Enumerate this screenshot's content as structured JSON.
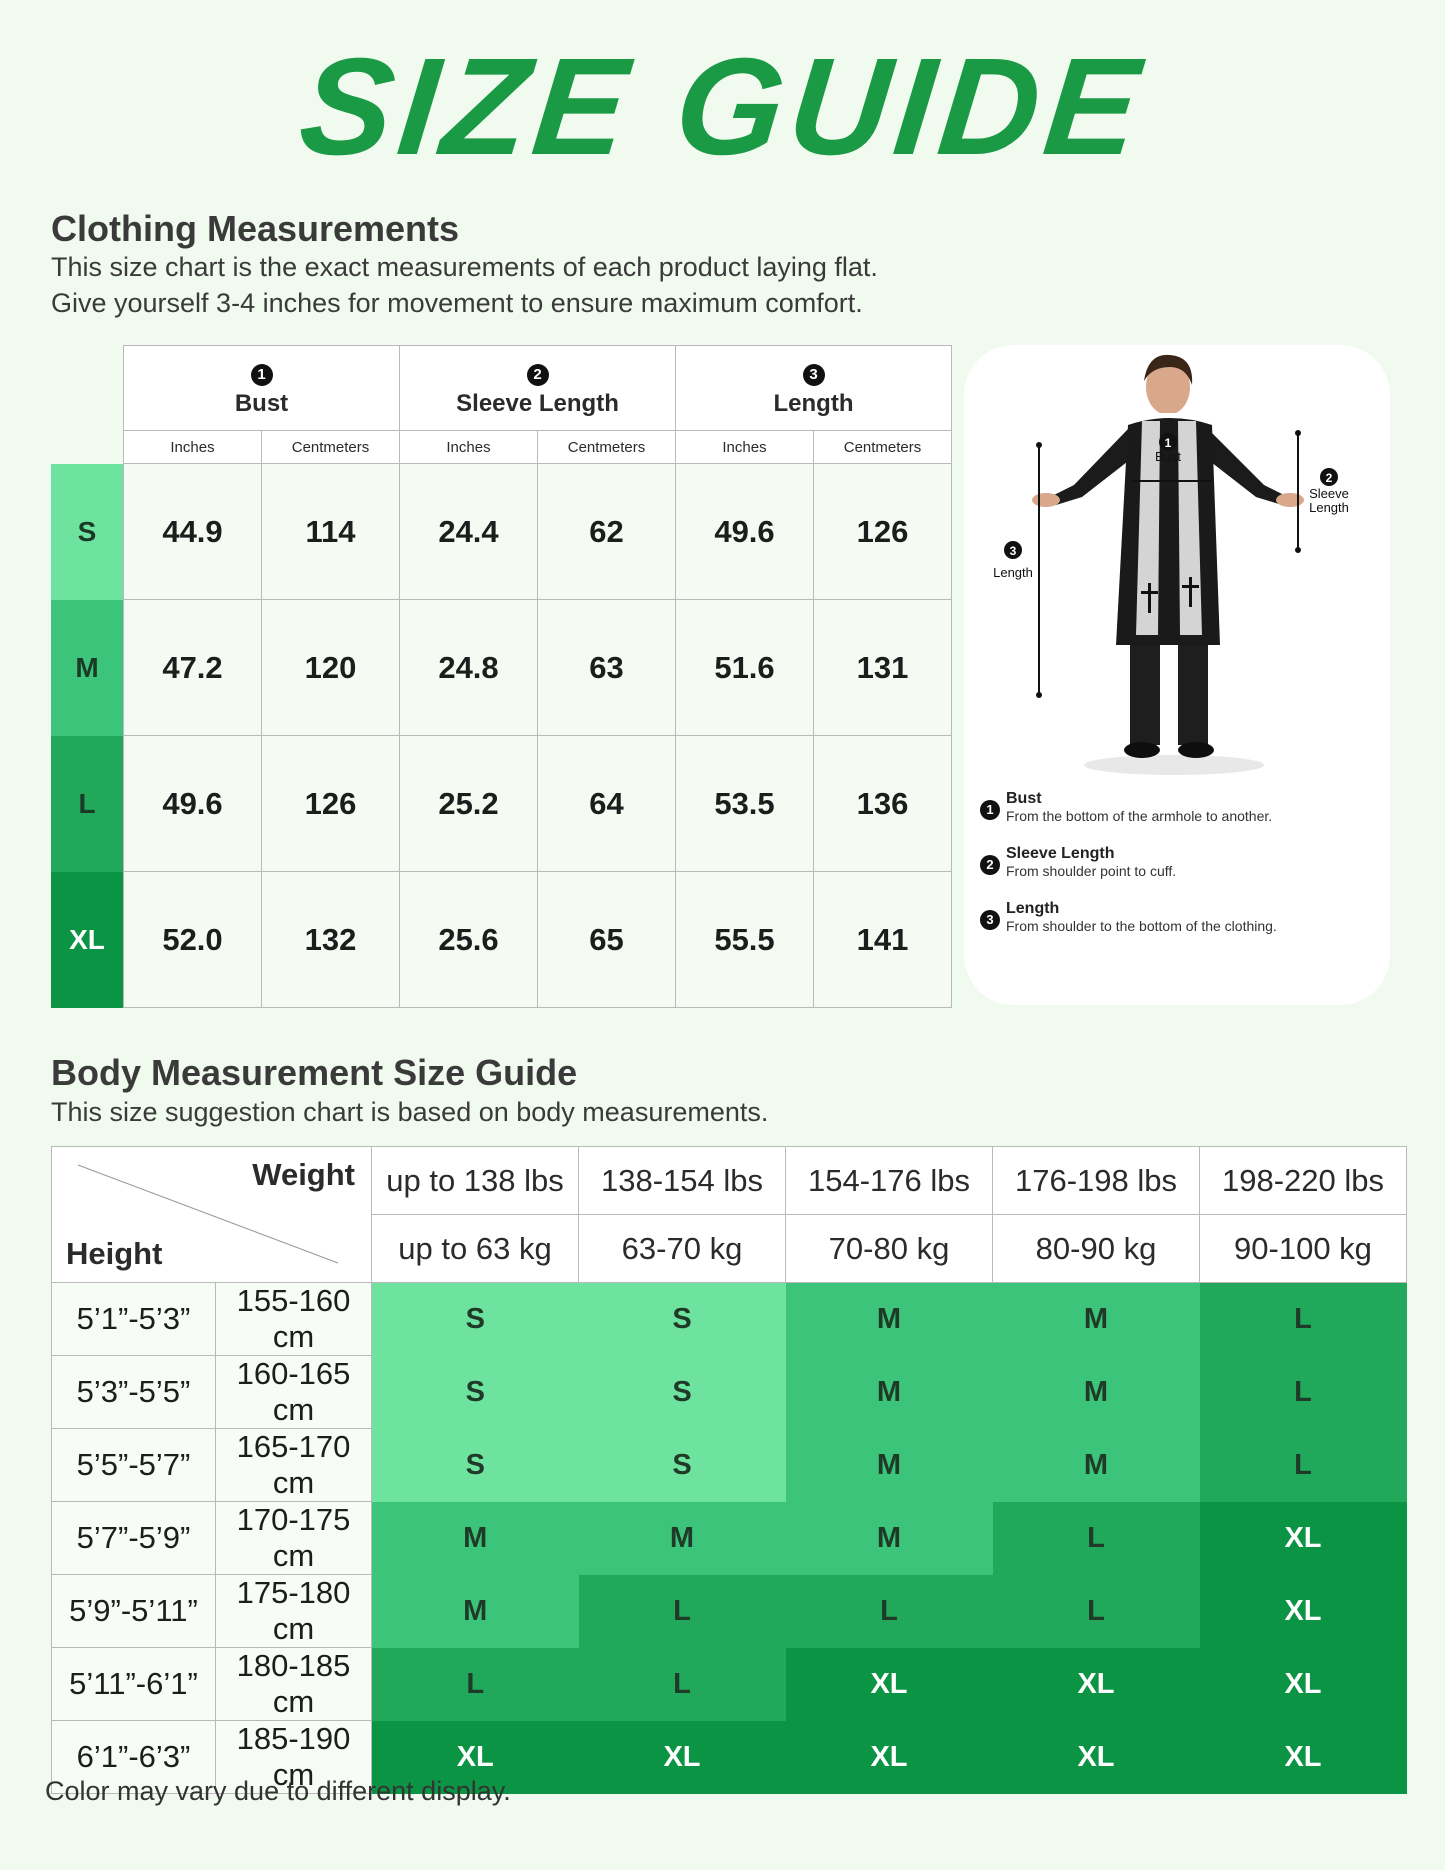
{
  "title": "SIZE GUIDE",
  "clothing": {
    "heading": "Clothing Measurements",
    "line1": "This size chart is the exact measurements of each product laying flat.",
    "line2": "Give yourself 3-4 inches for movement to ensure maximum comfort.",
    "groups": [
      {
        "num": "1",
        "label": "Bust"
      },
      {
        "num": "2",
        "label": "Sleeve Length"
      },
      {
        "num": "3",
        "label": "Length"
      }
    ],
    "units": [
      "Inches",
      "Centmeters",
      "Inches",
      "Centmeters",
      "Inches",
      "Centmeters"
    ],
    "rows": [
      {
        "size": "S",
        "color": "#6ee3a0",
        "values": [
          "44.9",
          "114",
          "24.4",
          "62",
          "49.6",
          "126"
        ]
      },
      {
        "size": "M",
        "color": "#3cc57a",
        "values": [
          "47.2",
          "120",
          "24.8",
          "63",
          "51.6",
          "131"
        ]
      },
      {
        "size": "L",
        "color": "#22a85a",
        "values": [
          "49.6",
          "126",
          "25.2",
          "64",
          "53.5",
          "136"
        ]
      },
      {
        "size": "XL",
        "color": "#0b9443",
        "values": [
          "52.0",
          "132",
          "25.6",
          "65",
          "55.5",
          "141"
        ]
      }
    ]
  },
  "figure": {
    "bust_label": "Bust",
    "sleeve_label_1": "Sleeve",
    "sleeve_label_2": "Length",
    "length_label": "Length",
    "legend": [
      {
        "num": "1",
        "title": "Bust",
        "desc": "From the bottom of the armhole to another."
      },
      {
        "num": "2",
        "title": "Sleeve Length",
        "desc": "From shoulder point to cuff."
      },
      {
        "num": "3",
        "title": "Length",
        "desc": "From shoulder to the bottom of the clothing."
      }
    ]
  },
  "body": {
    "heading": "Body Measurement Size Guide",
    "line1": "This size suggestion chart is based on body measurements.",
    "weight_label": "Weight",
    "height_label": "Height",
    "weights_lbs": [
      "up to 138 lbs",
      "138-154 lbs",
      "154-176 lbs",
      "176-198 lbs",
      "198-220 lbs"
    ],
    "weights_kg": [
      "up to 63 kg",
      "63-70 kg",
      "70-80 kg",
      "80-90 kg",
      "90-100 kg"
    ],
    "rows": [
      {
        "ft": "5’1”-5’3”",
        "cm": "155-160 cm",
        "sizes": [
          "S",
          "S",
          "M",
          "M",
          "L"
        ]
      },
      {
        "ft": "5’3”-5’5”",
        "cm": "160-165 cm",
        "sizes": [
          "S",
          "S",
          "M",
          "M",
          "L"
        ]
      },
      {
        "ft": "5’5”-5’7”",
        "cm": "165-170 cm",
        "sizes": [
          "S",
          "S",
          "M",
          "M",
          "L"
        ]
      },
      {
        "ft": "5’7”-5’9”",
        "cm": "170-175 cm",
        "sizes": [
          "M",
          "M",
          "M",
          "L",
          "XL"
        ]
      },
      {
        "ft": "5’9”-5’11”",
        "cm": "175-180 cm",
        "sizes": [
          "M",
          "L",
          "L",
          "L",
          "XL"
        ]
      },
      {
        "ft": "5’11”-6’1”",
        "cm": "180-185 cm",
        "sizes": [
          "L",
          "L",
          "XL",
          "XL",
          "XL"
        ]
      },
      {
        "ft": "6’1”-6’3”",
        "cm": "185-190 cm",
        "sizes": [
          "XL",
          "XL",
          "XL",
          "XL",
          "XL"
        ]
      }
    ],
    "size_colors": {
      "S": "#6ee3a0",
      "M": "#3cc57a",
      "L": "#22a85a",
      "XL": "#0b9443"
    }
  },
  "footer": "Color may vary due to different display."
}
